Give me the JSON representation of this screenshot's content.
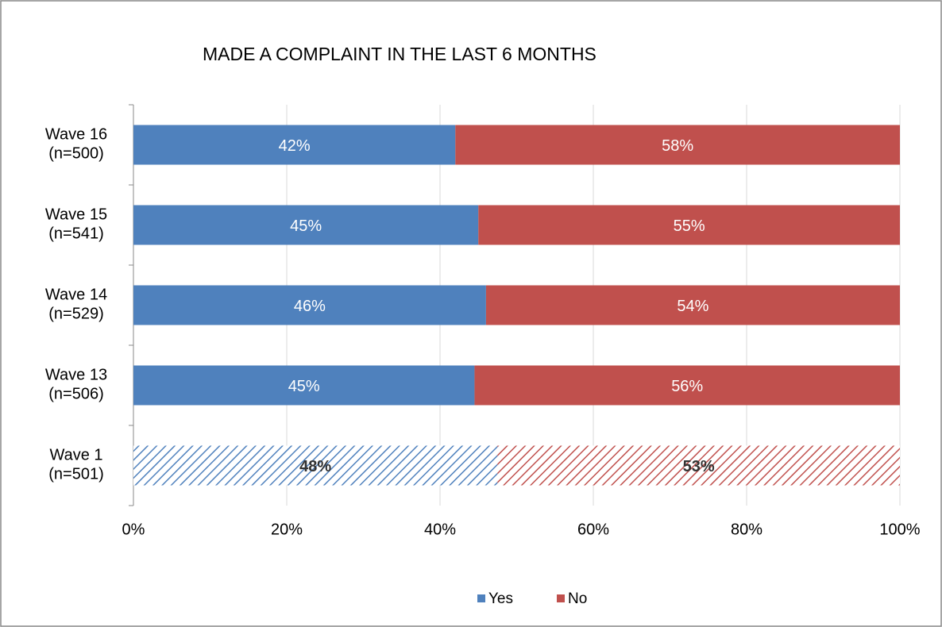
{
  "chart_data": {
    "type": "stacked_barh",
    "title": "MADE A COMPLAINT IN THE LAST 6 MONTHS",
    "categories": [
      "Wave 16\n(n=500)",
      "Wave 15\n(n=541)",
      "Wave 14\n(n=529)",
      "Wave 13\n(n=506)",
      "Wave 1\n(n=501)"
    ],
    "hatched": [
      false,
      false,
      false,
      false,
      true
    ],
    "series": [
      {
        "name": "Yes",
        "color": "#4f81bd",
        "values": [
          42,
          45,
          46,
          44.5,
          47.5
        ],
        "value_labels": [
          "42%",
          "45%",
          "46%",
          "45%",
          "48%"
        ]
      },
      {
        "name": "No",
        "color": "#c0504d",
        "values": [
          58,
          55,
          54,
          55.5,
          52.5
        ],
        "value_labels": [
          "58%",
          "55%",
          "54%",
          "56%",
          "53%"
        ]
      }
    ],
    "xlim": [
      0,
      100
    ],
    "xticks": [
      {
        "value": 0,
        "label": "0%"
      },
      {
        "value": 20,
        "label": "20%"
      },
      {
        "value": 40,
        "label": "40%"
      },
      {
        "value": 60,
        "label": "60%"
      },
      {
        "value": 80,
        "label": "80%"
      },
      {
        "value": 100,
        "label": "100%"
      }
    ],
    "grid": true,
    "legend": "bottom"
  }
}
